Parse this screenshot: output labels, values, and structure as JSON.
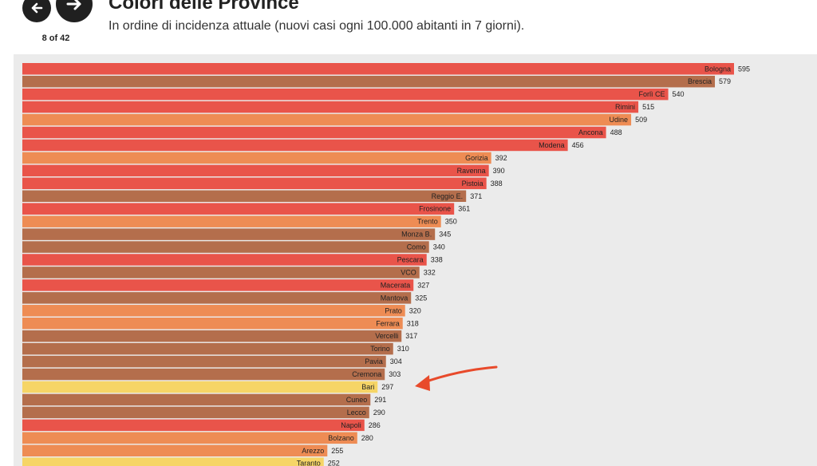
{
  "header": {
    "title": "Colori delle Province",
    "subtitle": "In ordine di incidenza attuale (nuovi casi ogni 100.000 abitanti in 7 giorni).",
    "counter": "8 of 42",
    "prev_icon": "arrow-left-icon",
    "next_icon": "arrow-right-icon"
  },
  "colors": {
    "red": "#e9544a",
    "brown": "#b46e4c",
    "orange": "#ee8c54",
    "yellow": "#f6d566",
    "annotation_arrow": "#e84a2b",
    "panel": "#ebebeb"
  },
  "chart_data": {
    "type": "bar",
    "orientation": "horizontal",
    "categories": [
      "Bologna",
      "Brescia",
      "Forlì CE",
      "Rimini",
      "Udine",
      "Ancona",
      "Modena",
      "Gorizia",
      "Ravenna",
      "Pistoia",
      "Reggio E.",
      "Frosinone",
      "Trento",
      "Monza B.",
      "Como",
      "Pescara",
      "VCO",
      "Macerata",
      "Mantova",
      "Prato",
      "Ferrara",
      "Vercelli",
      "Torino",
      "Pavia",
      "Cremona",
      "Bari",
      "Cuneo",
      "Lecco",
      "Napoli",
      "Bolzano",
      "Arezzo",
      "Taranto"
    ],
    "values": [
      595,
      579,
      540,
      515,
      509,
      488,
      456,
      392,
      390,
      388,
      371,
      361,
      350,
      345,
      340,
      338,
      332,
      327,
      325,
      320,
      318,
      317,
      310,
      304,
      303,
      297,
      291,
      290,
      286,
      280,
      255,
      252
    ],
    "bar_colors": [
      "red",
      "brown",
      "red",
      "red",
      "orange",
      "red",
      "red",
      "orange",
      "red",
      "red",
      "brown",
      "red",
      "orange",
      "brown",
      "brown",
      "red",
      "brown",
      "red",
      "brown",
      "orange",
      "orange",
      "brown",
      "brown",
      "brown",
      "brown",
      "yellow",
      "brown",
      "brown",
      "red",
      "orange",
      "orange",
      "yellow"
    ],
    "highlighted_category": "Bari"
  }
}
